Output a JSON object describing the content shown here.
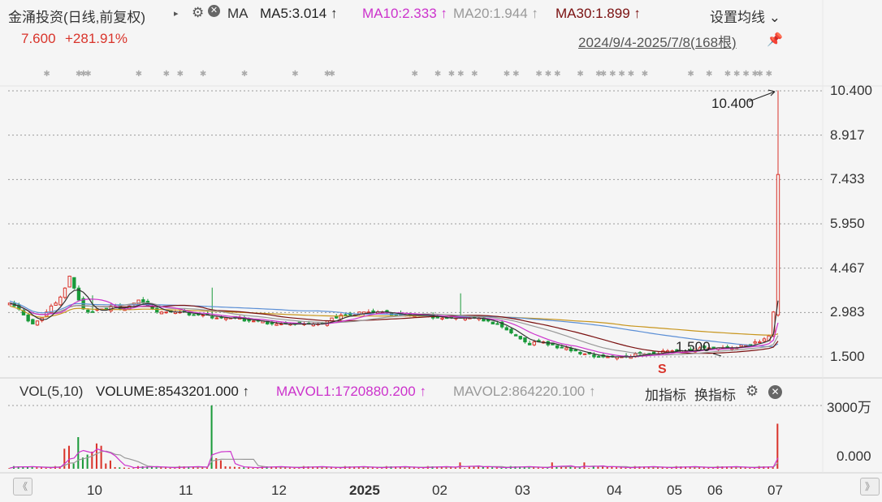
{
  "header": {
    "title": "金涌投资(日线,前复权)",
    "indicator_name": "MA",
    "ma5": "MA5:3.014",
    "ma10": "MA10:2.333",
    "ma20": "MA20:1.944",
    "ma30": "MA30:1.899",
    "arrow": "↑",
    "settings_label": "设置均线",
    "settings_caret": "⌄",
    "play_icon": "▸",
    "gear_icon": "⚙",
    "close_icon": "✕"
  },
  "price_row": {
    "last_price": "7.600",
    "change_pct": "+281.91%",
    "date_range": "2024/9/4-2025/7/8(168根)",
    "pin_icon": "📌"
  },
  "volume_bar": {
    "title": "VOL(5,10)",
    "volume": "VOLUME:8543201.000",
    "mavol1": "MAVOL1:1720880.200",
    "mavol2": "MAVOL2:864220.100",
    "arrow": "↑",
    "add_indicator": "加指标",
    "swap_indicator": "换指标",
    "gear_icon": "⚙",
    "close_icon": "✕"
  },
  "price_axis": [
    "10.400",
    "8.917",
    "7.433",
    "5.950",
    "4.467",
    "2.983",
    "1.500"
  ],
  "volume_axis": [
    "3000万",
    "0.000"
  ],
  "annotations": {
    "high": "10.400",
    "low": "1.500",
    "signal": "S"
  },
  "x_axis": {
    "months": [
      "10",
      "11",
      "12",
      "2025",
      "02",
      "03",
      "04",
      "05",
      "06",
      "07"
    ],
    "nav_left": "《",
    "nav_right": "》"
  },
  "colors": {
    "up": "#d9342b",
    "down": "#1a9a3a",
    "ma5": "#333333",
    "ma10": "#cc33cc",
    "ma20": "#999999",
    "ma30": "#7a1010",
    "ma60": "#5b8fd6",
    "ma120": "#c8961e"
  },
  "chart_data": {
    "type": "candlestick",
    "ylim": [
      1.5,
      10.4
    ],
    "volume_ylim": [
      0,
      30000000
    ],
    "date_range": [
      "2024-09-04",
      "2025-07-08"
    ],
    "bars": 168,
    "close_series_approx": [
      3.3,
      3.2,
      3.1,
      2.9,
      2.7,
      2.6,
      2.7,
      2.8,
      3.0,
      3.2,
      3.3,
      3.5,
      3.8,
      4.2,
      3.8,
      3.4,
      3.1,
      3.0,
      3.0,
      3.1,
      3.1,
      3.1,
      3.2,
      3.2,
      3.1,
      3.1,
      3.2,
      3.3,
      3.4,
      3.3,
      3.2,
      3.1,
      3.0,
      3.0,
      3.0,
      3.0,
      3.0,
      3.0,
      3.0,
      2.9,
      2.9,
      2.9,
      2.9,
      2.9,
      2.8,
      2.8,
      2.8,
      2.8,
      2.8,
      2.8,
      2.8,
      2.7,
      2.7,
      2.7,
      2.7,
      2.7,
      2.6,
      2.6,
      2.6,
      2.6,
      2.6,
      2.6,
      2.6,
      2.6,
      2.6,
      2.6,
      2.6,
      2.6,
      2.6,
      2.7,
      2.8,
      2.8,
      2.9,
      2.9,
      2.9,
      2.9,
      3.0,
      3.0,
      3.0,
      3.0,
      3.0,
      3.0,
      3.0,
      2.9,
      2.9,
      2.9,
      2.9,
      2.9,
      2.9,
      2.9,
      2.9,
      2.9,
      2.8,
      2.8,
      2.8,
      2.8,
      2.8,
      2.8,
      2.8,
      2.8,
      2.8,
      2.8,
      2.8,
      2.7,
      2.7,
      2.6,
      2.6,
      2.5,
      2.4,
      2.3,
      2.2,
      2.1,
      2.0,
      1.9,
      2.0,
      2.0,
      2.0,
      1.9,
      1.9,
      1.8,
      1.8,
      1.8,
      1.7,
      1.7,
      1.6,
      1.6,
      1.6,
      1.5,
      1.5,
      1.5,
      1.5,
      1.5,
      1.5,
      1.5,
      1.5,
      1.5,
      1.6,
      1.6,
      1.6,
      1.6,
      1.6,
      1.6,
      1.7,
      1.7,
      1.7,
      1.7,
      1.7,
      1.7,
      1.7,
      1.7,
      1.8,
      1.8,
      1.8,
      1.8,
      1.8,
      1.8,
      1.8,
      1.8,
      1.8,
      1.9,
      1.9,
      1.9,
      2.0,
      2.0,
      2.1,
      2.2,
      3.0,
      7.6
    ],
    "last_close": 7.6,
    "high": 10.4,
    "low": 1.5,
    "last_volume": 8543201,
    "mavol1": 1720880.2,
    "mavol2": 864220.1
  }
}
